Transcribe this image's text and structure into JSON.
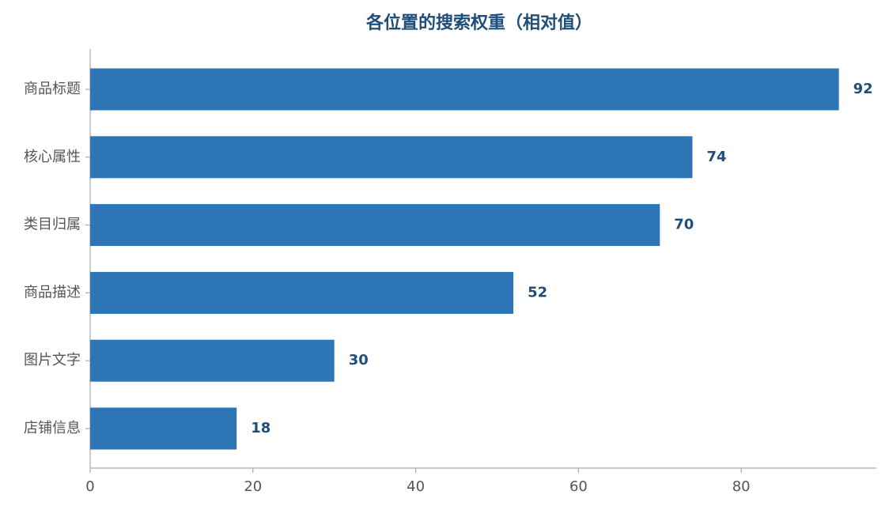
{
  "chart_data": {
    "type": "barh",
    "title": "各位置的搜索权重（相对值）",
    "categories": [
      "商品标题",
      "核心属性",
      "类目归属",
      "商品描述",
      "图片文字",
      "店铺信息"
    ],
    "values": [
      92,
      74,
      70,
      52,
      30,
      18
    ],
    "color": "#2e75b6",
    "xlim": [
      0,
      96.6
    ],
    "xticks": [
      0,
      20,
      40,
      60,
      80
    ],
    "grid": false
  }
}
